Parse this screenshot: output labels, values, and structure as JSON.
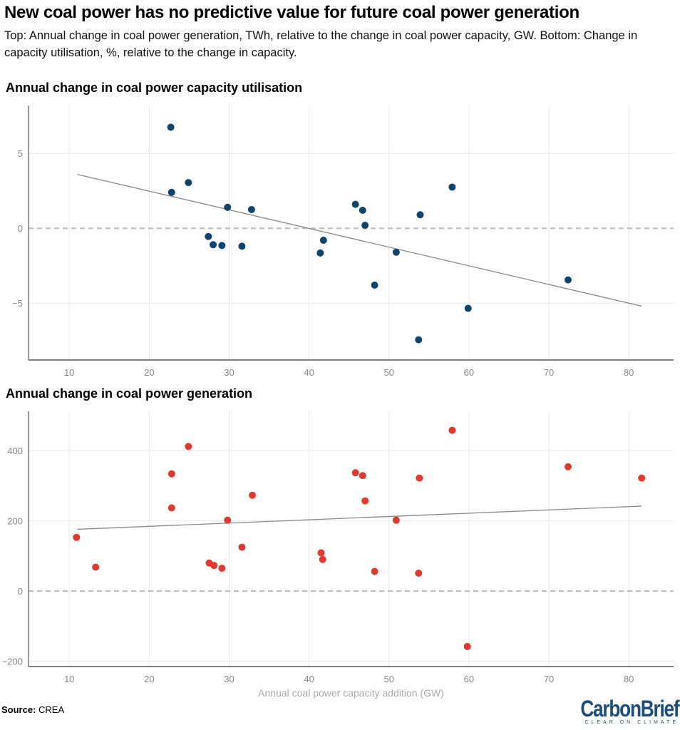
{
  "title": "New coal power has no predictive value for future coal power generation",
  "subtitle": "Top: Annual change in coal power generation, TWh, relative to the change in coal power capacity, GW. Bottom: Change in capacity utilisation, %, relative to the change in capacity.",
  "source_label": "Source:",
  "source": "CREA",
  "logo": {
    "name": "CarbonBrief",
    "tagline": "CLEAR ON CLIMATE"
  },
  "chart_data": [
    {
      "type": "scatter",
      "title": "Annual change in coal power capacity utilisation",
      "xlabel": "",
      "ylabel": "",
      "xlim": [
        4.9,
        85.6
      ],
      "ylim": [
        -8.8,
        8.2
      ],
      "xticks": [
        10,
        20,
        30,
        40,
        50,
        60,
        70,
        80
      ],
      "yticks": [
        -5,
        0,
        5
      ],
      "grid": true,
      "color": "#0e4470",
      "points": [
        [
          22.7,
          6.75
        ],
        [
          22.8,
          2.4
        ],
        [
          24.9,
          3.05
        ],
        [
          27.4,
          -0.55
        ],
        [
          28.0,
          -1.1
        ],
        [
          29.1,
          -1.15
        ],
        [
          29.8,
          1.4
        ],
        [
          31.6,
          -1.2
        ],
        [
          32.8,
          1.25
        ],
        [
          41.4,
          -1.65
        ],
        [
          41.8,
          -0.8
        ],
        [
          45.8,
          1.6
        ],
        [
          46.7,
          1.2
        ],
        [
          47.0,
          0.2
        ],
        [
          48.2,
          -3.8
        ],
        [
          50.9,
          -1.6
        ],
        [
          53.9,
          0.9
        ],
        [
          53.7,
          -7.45
        ],
        [
          57.9,
          2.75
        ],
        [
          59.9,
          -5.35
        ],
        [
          72.4,
          -3.45
        ]
      ],
      "trendline": [
        [
          11.0,
          3.6
        ],
        [
          81.6,
          -5.2
        ]
      ]
    },
    {
      "type": "scatter",
      "title": "Annual change in coal power generation",
      "xlabel": "Annual coal power capacity addition (GW)",
      "ylabel": "",
      "xlim": [
        4.9,
        85.6
      ],
      "ylim": [
        -215,
        512
      ],
      "xticks": [
        10,
        20,
        30,
        40,
        50,
        60,
        70,
        80
      ],
      "yticks": [
        -200,
        0,
        200,
        400
      ],
      "grid": true,
      "color": "#e03a2f",
      "points": [
        [
          10.9,
          153
        ],
        [
          13.3,
          68
        ],
        [
          22.8,
          334
        ],
        [
          22.8,
          237
        ],
        [
          24.9,
          412
        ],
        [
          27.5,
          80
        ],
        [
          28.1,
          73
        ],
        [
          29.1,
          65
        ],
        [
          29.8,
          202
        ],
        [
          31.6,
          125
        ],
        [
          32.9,
          273
        ],
        [
          41.5,
          109
        ],
        [
          41.7,
          90
        ],
        [
          45.8,
          337
        ],
        [
          46.7,
          329
        ],
        [
          47.0,
          257
        ],
        [
          48.2,
          56
        ],
        [
          50.9,
          202
        ],
        [
          53.7,
          51
        ],
        [
          53.8,
          322
        ],
        [
          57.9,
          458
        ],
        [
          59.8,
          -158
        ],
        [
          72.4,
          354
        ],
        [
          81.6,
          322
        ]
      ],
      "trendline": [
        [
          11.0,
          176
        ],
        [
          81.6,
          242
        ]
      ]
    }
  ]
}
